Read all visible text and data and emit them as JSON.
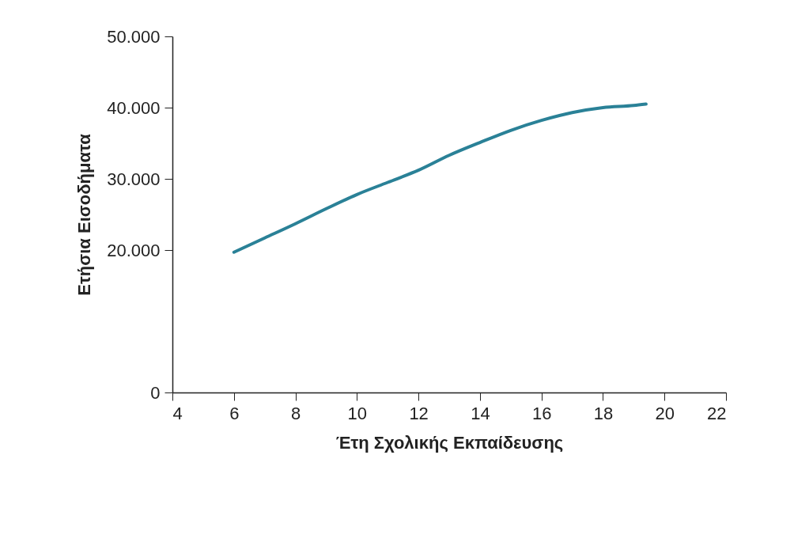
{
  "chart_data": {
    "type": "line",
    "xlabel": "Έτη Σχολικής Εκπαίδευσης",
    "ylabel": "Ετήσια Εισοδήματα",
    "x": [
      6,
      7,
      8,
      9,
      10,
      11,
      12,
      13,
      14,
      15,
      16,
      17,
      18,
      19,
      19.4
    ],
    "series": [
      {
        "color": "#2a8197",
        "values": [
          19700,
          21700,
          23700,
          25800,
          27800,
          29500,
          31200,
          33300,
          35100,
          36800,
          38200,
          39300,
          40000,
          40300,
          40500
        ]
      }
    ],
    "xlim": [
      4,
      22
    ],
    "xticks": [
      4,
      6,
      8,
      10,
      12,
      14,
      16,
      18,
      20,
      22
    ],
    "ylim": [
      0,
      50000
    ],
    "yticks": [
      0,
      {
        "value": 20000,
        "label": "20.000"
      },
      {
        "value": 30000,
        "label": "30.000"
      },
      {
        "value": 40000,
        "label": "40.000"
      },
      {
        "value": 50000,
        "label": "50.000"
      }
    ],
    "grid": false,
    "marker": "none",
    "line_style": "solid"
  }
}
